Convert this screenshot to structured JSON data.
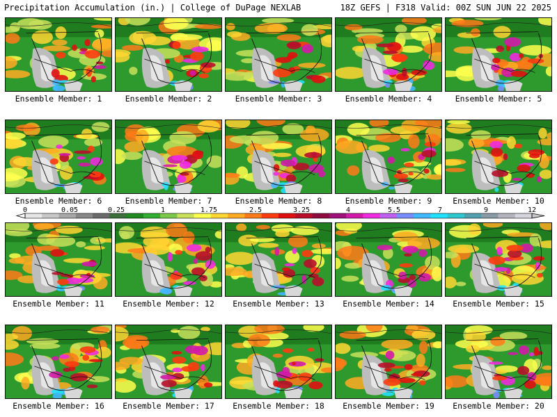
{
  "header": {
    "left": "Precipitation Accumulation (in.) | College of DuPage NEXLAB",
    "right": "18Z GEFS | F318 Valid: 00Z SUN JUN 22 2025"
  },
  "panels": [
    {
      "caption": "Ensemble Member: 1"
    },
    {
      "caption": "Ensemble Member: 2"
    },
    {
      "caption": "Ensemble Member: 3"
    },
    {
      "caption": "Ensemble Member: 4"
    },
    {
      "caption": "Ensemble Member: 5"
    },
    {
      "caption": "Ensemble Member: 6"
    },
    {
      "caption": "Ensemble Member: 7"
    },
    {
      "caption": "Ensemble Member: 8"
    },
    {
      "caption": "Ensemble Member: 9"
    },
    {
      "caption": "Ensemble Member: 10"
    },
    {
      "caption": "Ensemble Member: 11"
    },
    {
      "caption": "Ensemble Member: 12"
    },
    {
      "caption": "Ensemble Member: 13"
    },
    {
      "caption": "Ensemble Member: 14"
    },
    {
      "caption": "Ensemble Member: 15"
    },
    {
      "caption": "Ensemble Member: 16"
    },
    {
      "caption": "Ensemble Member: 17"
    },
    {
      "caption": "Ensemble Member: 18"
    },
    {
      "caption": "Ensemble Member: 19"
    },
    {
      "caption": "Ensemble Member: 20"
    }
  ],
  "colorbar": {
    "labels": [
      "0",
      "0.05",
      "0.25",
      "1",
      "1.75",
      "2.5",
      "3.25",
      "4",
      "5.5",
      "7",
      "9",
      "12"
    ],
    "colors": [
      "#e6e6e6",
      "#c8c8c8",
      "#a8a8a8",
      "#888888",
      "#6a6a6a",
      "#3d6f3d",
      "#1f8a1f",
      "#2fae2f",
      "#7cc84a",
      "#c8e05a",
      "#ffff4d",
      "#ffd633",
      "#ffaa22",
      "#ff7a18",
      "#ff3b10",
      "#e01010",
      "#b80e2a",
      "#8e0c40",
      "#a0107a",
      "#d21aa8",
      "#f02ae0",
      "#c060f0",
      "#7a8cff",
      "#40b8ff",
      "#22e0ff",
      "#30c8d0",
      "#50a0b0",
      "#8a9aa6",
      "#b4b4be",
      "#d4d4dc"
    ]
  }
}
